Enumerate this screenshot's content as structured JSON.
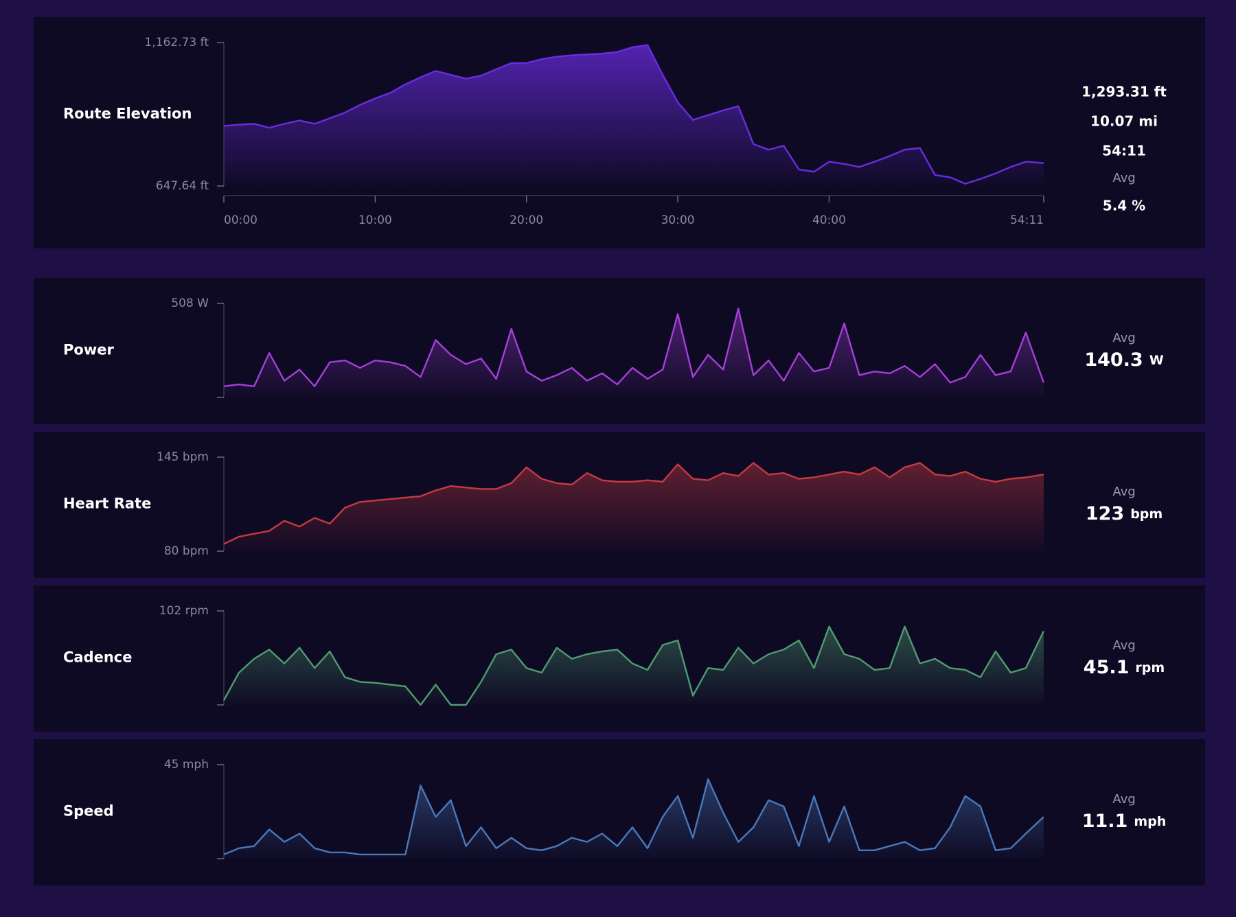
{
  "chart_data": [
    {
      "type": "line",
      "title": "Route Elevation",
      "color": "#6a2ce0",
      "x": [
        0,
        1,
        2,
        3,
        4,
        5,
        6,
        7,
        8,
        9,
        10,
        11,
        12,
        13,
        14,
        15,
        16,
        17,
        18,
        19,
        20,
        21,
        22,
        23,
        24,
        25,
        26,
        27,
        28,
        29,
        30,
        31,
        32,
        33,
        34,
        35,
        36,
        37,
        38,
        39,
        40,
        41,
        42,
        43,
        44,
        45,
        46,
        47,
        48,
        49,
        50,
        51,
        52,
        53,
        54.18
      ],
      "values": [
        863,
        868,
        871,
        857,
        871,
        883,
        871,
        891,
        911,
        939,
        962,
        982,
        1013,
        1038,
        1061,
        1047,
        1033,
        1044,
        1067,
        1089,
        1089,
        1103,
        1112,
        1117,
        1120,
        1123,
        1129,
        1146,
        1154,
        1047,
        948,
        885,
        902,
        919,
        934,
        798,
        778,
        792,
        707,
        699,
        735,
        727,
        716,
        735,
        755,
        778,
        784,
        687,
        679,
        656,
        673,
        693,
        716,
        735,
        730
      ],
      "xlim": [
        0,
        54.1833
      ],
      "xticks": [
        {
          "value": 0,
          "label": "00:00"
        },
        {
          "value": 10,
          "label": "10:00"
        },
        {
          "value": 20,
          "label": "20:00"
        },
        {
          "value": 30,
          "label": "30:00"
        },
        {
          "value": 40,
          "label": "40:00"
        },
        {
          "value": 54.1833,
          "label": "54:11"
        }
      ],
      "ylim": [
        647.64,
        1162.73
      ],
      "yticks": [
        {
          "value": 1162.73,
          "label": "1,162.73 ft"
        },
        {
          "value": 647.64,
          "label": "647.64 ft"
        }
      ],
      "stats": [
        "1,293.31 ft",
        "10.07 mi",
        "54:11",
        "Avg",
        "5.4 %"
      ]
    },
    {
      "type": "line",
      "title": "Power",
      "color": "#a53fd8",
      "x": [
        0,
        1,
        2,
        3,
        4,
        5,
        6,
        7,
        8,
        9,
        10,
        11,
        12,
        13,
        14,
        15,
        16,
        17,
        18,
        19,
        20,
        21,
        22,
        23,
        24,
        25,
        26,
        27,
        28,
        29,
        30,
        31,
        32,
        33,
        34,
        35,
        36,
        37,
        38,
        39,
        40,
        41,
        42,
        43,
        44,
        45,
        46,
        47,
        48,
        49,
        50,
        51,
        52,
        53,
        54.18
      ],
      "values": [
        60,
        70,
        60,
        240,
        90,
        150,
        60,
        190,
        200,
        160,
        200,
        190,
        170,
        110,
        310,
        230,
        180,
        210,
        100,
        370,
        140,
        90,
        120,
        160,
        90,
        130,
        70,
        160,
        100,
        150,
        450,
        110,
        230,
        150,
        480,
        120,
        200,
        90,
        240,
        140,
        160,
        400,
        120,
        140,
        130,
        170,
        110,
        180,
        80,
        110,
        230,
        120,
        140,
        350,
        80
      ],
      "xlim": [
        0,
        54.1833
      ],
      "ylim": [
        0,
        508
      ],
      "yticks": [
        {
          "value": 508,
          "label": "508 W"
        }
      ],
      "avg": {
        "label": "Avg",
        "value": 140.3,
        "unit": "W"
      }
    },
    {
      "type": "line",
      "title": "Heart Rate",
      "color": "#c63a40",
      "x": [
        0,
        1,
        2,
        3,
        4,
        5,
        6,
        7,
        8,
        9,
        10,
        11,
        12,
        13,
        14,
        15,
        16,
        17,
        18,
        19,
        20,
        21,
        22,
        23,
        24,
        25,
        26,
        27,
        28,
        29,
        30,
        31,
        32,
        33,
        34,
        35,
        36,
        37,
        38,
        39,
        40,
        41,
        42,
        43,
        44,
        45,
        46,
        47,
        48,
        49,
        50,
        51,
        52,
        53,
        54.18
      ],
      "values": [
        85,
        90,
        92,
        94,
        101,
        97,
        103,
        99,
        110,
        114,
        115,
        116,
        117,
        118,
        122,
        125,
        124,
        123,
        123,
        127,
        138,
        130,
        127,
        126,
        134,
        129,
        128,
        128,
        129,
        128,
        140,
        130,
        129,
        134,
        132,
        141,
        133,
        134,
        130,
        131,
        133,
        135,
        133,
        138,
        131,
        138,
        141,
        133,
        132,
        135,
        130,
        128,
        130,
        131,
        133
      ],
      "xlim": [
        0,
        54.1833
      ],
      "ylim": [
        80,
        145
      ],
      "yticks": [
        {
          "value": 145,
          "label": "145 bpm"
        },
        {
          "value": 80,
          "label": "80 bpm"
        }
      ],
      "avg": {
        "label": "Avg",
        "value": 123,
        "unit": "bpm"
      }
    },
    {
      "type": "line",
      "title": "Cadence",
      "color": "#4f9c6f",
      "x": [
        0,
        1,
        2,
        3,
        4,
        5,
        6,
        7,
        8,
        9,
        10,
        11,
        12,
        13,
        14,
        15,
        16,
        17,
        18,
        19,
        20,
        21,
        22,
        23,
        24,
        25,
        26,
        27,
        28,
        29,
        30,
        31,
        32,
        33,
        34,
        35,
        36,
        37,
        38,
        39,
        40,
        41,
        42,
        43,
        44,
        45,
        46,
        47,
        48,
        49,
        50,
        51,
        52,
        53,
        54.18
      ],
      "values": [
        5,
        35,
        50,
        60,
        45,
        62,
        40,
        58,
        30,
        25,
        24,
        22,
        20,
        0,
        22,
        0,
        0,
        25,
        55,
        60,
        40,
        35,
        62,
        50,
        55,
        58,
        60,
        45,
        38,
        65,
        70,
        10,
        40,
        38,
        62,
        45,
        55,
        60,
        70,
        40,
        85,
        55,
        50,
        38,
        40,
        85,
        45,
        50,
        40,
        38,
        30,
        58,
        35,
        40,
        80
      ],
      "xlim": [
        0,
        54.1833
      ],
      "ylim": [
        0,
        102
      ],
      "yticks": [
        {
          "value": 102,
          "label": "102 rpm"
        }
      ],
      "avg": {
        "label": "Avg",
        "value": 45.1,
        "unit": "rpm"
      }
    },
    {
      "type": "line",
      "title": "Speed",
      "color": "#4a79ba",
      "x": [
        0,
        1,
        2,
        3,
        4,
        5,
        6,
        7,
        8,
        9,
        10,
        11,
        12,
        13,
        14,
        15,
        16,
        17,
        18,
        19,
        20,
        21,
        22,
        23,
        24,
        25,
        26,
        27,
        28,
        29,
        30,
        31,
        32,
        33,
        34,
        35,
        36,
        37,
        38,
        39,
        40,
        41,
        42,
        43,
        44,
        45,
        46,
        47,
        48,
        49,
        50,
        51,
        52,
        53,
        54.18
      ],
      "values": [
        2,
        5,
        6,
        14,
        8,
        12,
        5,
        3,
        3,
        2,
        2,
        2,
        2,
        35,
        20,
        28,
        6,
        15,
        5,
        10,
        5,
        4,
        6,
        10,
        8,
        12,
        6,
        15,
        5,
        20,
        30,
        10,
        38,
        22,
        8,
        15,
        28,
        25,
        6,
        30,
        8,
        25,
        4,
        4,
        6,
        8,
        4,
        5,
        15,
        30,
        25,
        4,
        5,
        12,
        20
      ],
      "xlim": [
        0,
        54.1833
      ],
      "ylim": [
        0,
        45
      ],
      "yticks": [
        {
          "value": 45,
          "label": "45 mph"
        }
      ],
      "avg": {
        "label": "Avg",
        "value": 11.1,
        "unit": "mph"
      }
    }
  ]
}
